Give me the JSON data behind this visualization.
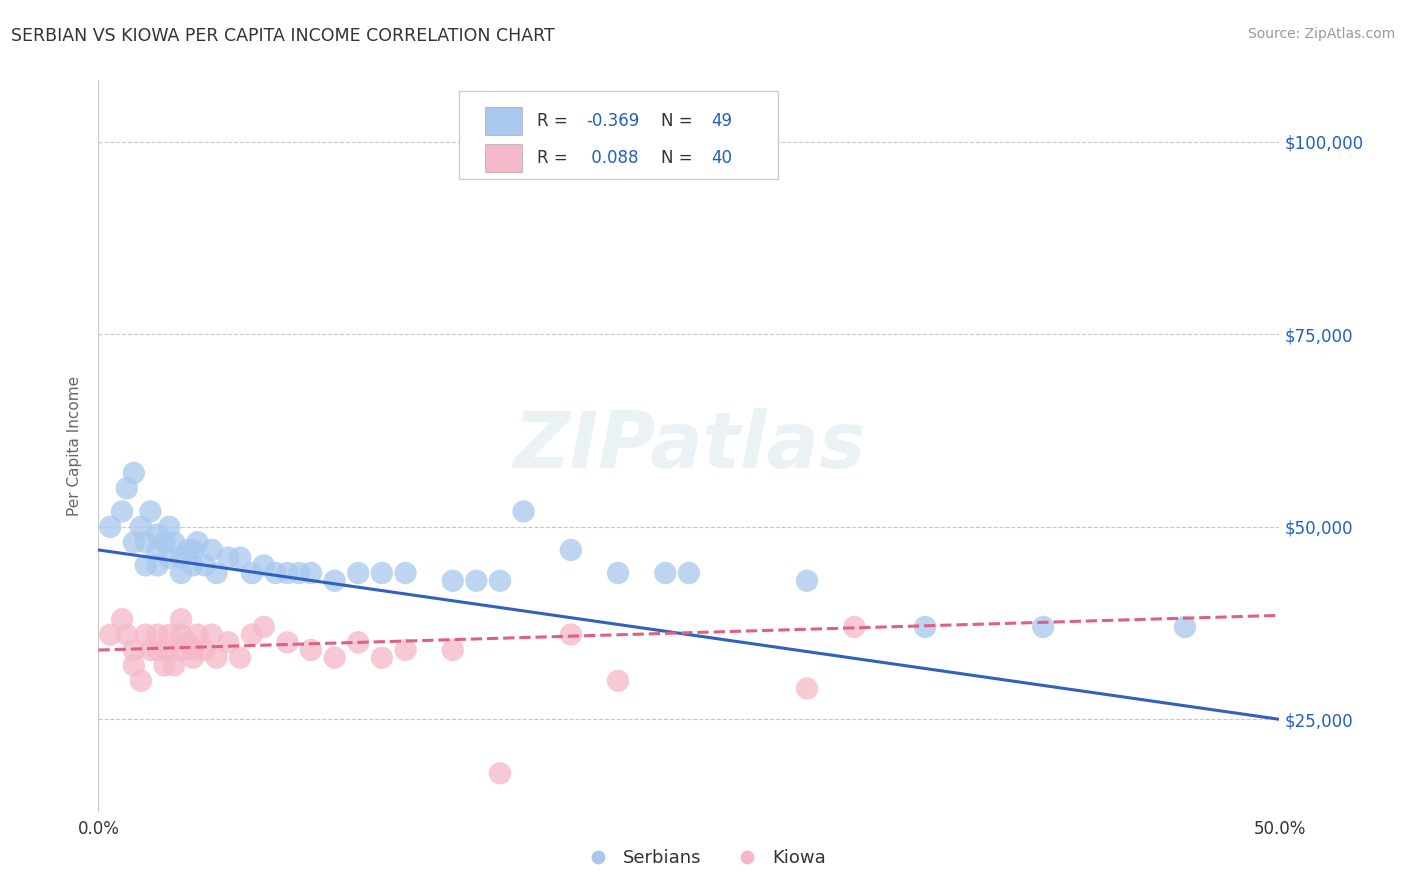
{
  "title": "SERBIAN VS KIOWA PER CAPITA INCOME CORRELATION CHART",
  "source_text": "Source: ZipAtlas.com",
  "ylabel": "Per Capita Income",
  "xlim": [
    0.0,
    0.5
  ],
  "ylim": [
    13000,
    108000
  ],
  "xtick_labels": [
    "0.0%",
    "50.0%"
  ],
  "ytick_labels": [
    "$25,000",
    "$50,000",
    "$75,000",
    "$100,000"
  ],
  "ytick_values": [
    25000,
    50000,
    75000,
    100000
  ],
  "xtick_values": [
    0.0,
    0.5
  ],
  "background_color": "#ffffff",
  "watermark_text": "ZIPatlas",
  "legend_r_serbian": "-0.369",
  "legend_n_serbian": "49",
  "legend_r_kiowa": "0.088",
  "legend_n_kiowa": "40",
  "serbian_color": "#a8c8ee",
  "kiowa_color": "#f5b8c8",
  "serbian_line_color": "#3060c0",
  "kiowa_line_color": "#e06080",
  "serbian_scatter": [
    [
      0.005,
      50000
    ],
    [
      0.01,
      52000
    ],
    [
      0.012,
      55000
    ],
    [
      0.015,
      57000
    ],
    [
      0.015,
      48000
    ],
    [
      0.018,
      50000
    ],
    [
      0.02,
      48000
    ],
    [
      0.02,
      45000
    ],
    [
      0.022,
      52000
    ],
    [
      0.025,
      49000
    ],
    [
      0.025,
      47000
    ],
    [
      0.025,
      45000
    ],
    [
      0.028,
      48000
    ],
    [
      0.03,
      50000
    ],
    [
      0.03,
      46000
    ],
    [
      0.032,
      48000
    ],
    [
      0.035,
      46000
    ],
    [
      0.035,
      44000
    ],
    [
      0.038,
      47000
    ],
    [
      0.04,
      47000
    ],
    [
      0.04,
      45000
    ],
    [
      0.042,
      48000
    ],
    [
      0.045,
      45000
    ],
    [
      0.048,
      47000
    ],
    [
      0.05,
      44000
    ],
    [
      0.055,
      46000
    ],
    [
      0.06,
      46000
    ],
    [
      0.065,
      44000
    ],
    [
      0.07,
      45000
    ],
    [
      0.075,
      44000
    ],
    [
      0.08,
      44000
    ],
    [
      0.085,
      44000
    ],
    [
      0.09,
      44000
    ],
    [
      0.1,
      43000
    ],
    [
      0.11,
      44000
    ],
    [
      0.12,
      44000
    ],
    [
      0.13,
      44000
    ],
    [
      0.15,
      43000
    ],
    [
      0.16,
      43000
    ],
    [
      0.17,
      43000
    ],
    [
      0.18,
      52000
    ],
    [
      0.2,
      47000
    ],
    [
      0.22,
      44000
    ],
    [
      0.24,
      44000
    ],
    [
      0.25,
      44000
    ],
    [
      0.3,
      43000
    ],
    [
      0.35,
      37000
    ],
    [
      0.4,
      37000
    ],
    [
      0.46,
      37000
    ]
  ],
  "kiowa_scatter": [
    [
      0.005,
      36000
    ],
    [
      0.01,
      38000
    ],
    [
      0.012,
      36000
    ],
    [
      0.015,
      34000
    ],
    [
      0.015,
      32000
    ],
    [
      0.018,
      30000
    ],
    [
      0.02,
      36000
    ],
    [
      0.022,
      34000
    ],
    [
      0.025,
      36000
    ],
    [
      0.025,
      34000
    ],
    [
      0.028,
      32000
    ],
    [
      0.03,
      36000
    ],
    [
      0.03,
      34000
    ],
    [
      0.032,
      32000
    ],
    [
      0.035,
      38000
    ],
    [
      0.035,
      36000
    ],
    [
      0.035,
      34000
    ],
    [
      0.038,
      35000
    ],
    [
      0.04,
      34000
    ],
    [
      0.04,
      33000
    ],
    [
      0.042,
      36000
    ],
    [
      0.045,
      34000
    ],
    [
      0.048,
      36000
    ],
    [
      0.05,
      33000
    ],
    [
      0.055,
      35000
    ],
    [
      0.06,
      33000
    ],
    [
      0.065,
      36000
    ],
    [
      0.07,
      37000
    ],
    [
      0.08,
      35000
    ],
    [
      0.09,
      34000
    ],
    [
      0.1,
      33000
    ],
    [
      0.11,
      35000
    ],
    [
      0.12,
      33000
    ],
    [
      0.13,
      34000
    ],
    [
      0.15,
      34000
    ],
    [
      0.17,
      18000
    ],
    [
      0.2,
      36000
    ],
    [
      0.22,
      30000
    ],
    [
      0.3,
      29000
    ],
    [
      0.32,
      37000
    ]
  ]
}
